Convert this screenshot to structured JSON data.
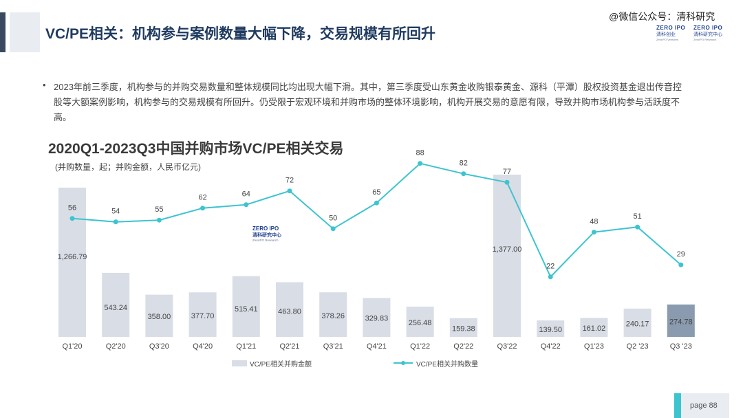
{
  "header": {
    "title": "VC/PE相关：机构参与案例数量大幅下降，交易规模有所回升",
    "watermark": "@微信公众号：清科研究",
    "logo_left": {
      "top": "ZERO IPO",
      "mid": "清科创业",
      "bot": "ZeroIPO Ventures"
    },
    "logo_right": {
      "top": "ZERO IPO",
      "mid": "清科研究中心",
      "bot": "ZeroIPO Research"
    }
  },
  "body": {
    "bullet": "•",
    "paragraph": "2023年前三季度，机构参与的并购交易数量和整体规模同比均出现大幅下滑。其中，第三季度受山东黄金收购银泰黄金、源科（平潭）股权投资基金退出传音控股等大额案例影响，机构参与的交易规模有所回升。仍受限于宏观环境和并购市场的整体环境影响，机构开展交易的意愿有限，导致并购市场机构参与活跃度不高。"
  },
  "chart_logo": {
    "top": "ZERO IPO",
    "mid": "清科研究中心",
    "bot": "ZeroIPO Research"
  },
  "footer": {
    "page": "page   88"
  },
  "colors": {
    "bar": "#d9dde6",
    "bar_highlight": "#8a9aaf",
    "line": "#3cc4cf",
    "title_accent": "#3a4a5e"
  },
  "chart_data": {
    "type": "bar",
    "title": "2020Q1-2023Q3中国并购市场VC/PE相关交易",
    "subtitle": "(并购数量，起；并购金额，人民币亿元)",
    "categories": [
      "Q1'20",
      "Q2'20",
      "Q3'20",
      "Q4'20",
      "Q1'21",
      "Q2'21",
      "Q3'21",
      "Q4'21",
      "Q1'22",
      "Q2'22",
      "Q3'22",
      "Q4'22",
      "Q1'23",
      "Q2  '23",
      "Q3  '23"
    ],
    "series": [
      {
        "name": "VC/PE相关并购金额",
        "type": "bar",
        "values": [
          1266.79,
          543.24,
          358.0,
          377.7,
          515.41,
          463.8,
          378.26,
          329.83,
          256.48,
          159.38,
          1377.0,
          139.5,
          161.02,
          240.17,
          274.78
        ],
        "labels": [
          "1,266.79",
          "543.24",
          "358.00",
          "377.70",
          "515.41",
          "463.80",
          "378.26",
          "329.83",
          "256.48",
          "159.38",
          "1,377.00",
          "139.50",
          "161.02",
          "240.17",
          "274.78"
        ]
      },
      {
        "name": "VC/PE相关并购数量",
        "type": "line",
        "values": [
          56,
          54,
          55,
          62,
          64,
          72,
          50,
          65,
          88,
          82,
          77,
          22,
          48,
          51,
          29
        ],
        "labels": [
          "56",
          "54",
          "55",
          "62",
          "64",
          "72",
          "50",
          "65",
          "88",
          "82",
          "77",
          "22",
          "48",
          "51",
          "29"
        ]
      }
    ],
    "highlight_index": 14,
    "legend": "bottom-center"
  }
}
